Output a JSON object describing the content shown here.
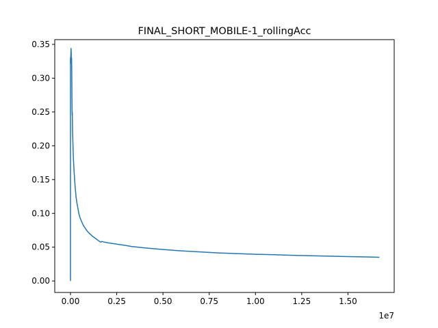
{
  "chart_data": {
    "type": "line",
    "title": "FINAL_SHORT_MOBILE-1_rollingAcc",
    "xlabel": "",
    "ylabel": "",
    "x_offset_label": "1e7",
    "xlim": [
      -850000,
      17500000
    ],
    "ylim": [
      -0.017,
      0.357
    ],
    "x_ticks": [
      0,
      2500000,
      5000000,
      7500000,
      10000000,
      12500000,
      15000000
    ],
    "x_tick_labels": [
      "0.00",
      "0.25",
      "0.50",
      "0.75",
      "1.00",
      "1.25",
      "1.50"
    ],
    "y_ticks": [
      0.0,
      0.05,
      0.1,
      0.15,
      0.2,
      0.25,
      0.3,
      0.35
    ],
    "y_tick_labels": [
      "0.00",
      "0.05",
      "0.10",
      "0.15",
      "0.20",
      "0.25",
      "0.30",
      "0.35"
    ],
    "grid": false,
    "legend": "none",
    "series": [
      {
        "color": "#1f77b4",
        "x": [
          0,
          0,
          10000,
          20000,
          30000,
          40000,
          50000,
          60000,
          70000,
          80000,
          90000,
          100000,
          110000,
          130000,
          160000,
          200000,
          250000,
          300000,
          350000,
          400000,
          450000,
          500000,
          600000,
          700000,
          800000,
          900000,
          1000000,
          1200000,
          1400000,
          1600000,
          1650000,
          1700000,
          1750000,
          2000000,
          2500000,
          3000000,
          3300000,
          3500000,
          4000000,
          5000000,
          6000000,
          7000000,
          8000000,
          9000000,
          10000000,
          11000000,
          12000000,
          13000000,
          14000000,
          15000000,
          16000000,
          16700000
        ],
        "y": [
          0.0,
          0.33,
          0.325,
          0.335,
          0.344,
          0.338,
          0.322,
          0.33,
          0.31,
          0.27,
          0.245,
          0.25,
          0.225,
          0.205,
          0.18,
          0.16,
          0.14,
          0.125,
          0.115,
          0.108,
          0.1,
          0.095,
          0.088,
          0.082,
          0.078,
          0.074,
          0.071,
          0.066,
          0.062,
          0.058,
          0.0575,
          0.0585,
          0.058,
          0.0565,
          0.0545,
          0.0525,
          0.051,
          0.0505,
          0.049,
          0.0465,
          0.0445,
          0.043,
          0.0415,
          0.0405,
          0.0395,
          0.0388,
          0.038,
          0.0373,
          0.0367,
          0.0361,
          0.0355,
          0.035
        ]
      }
    ]
  }
}
